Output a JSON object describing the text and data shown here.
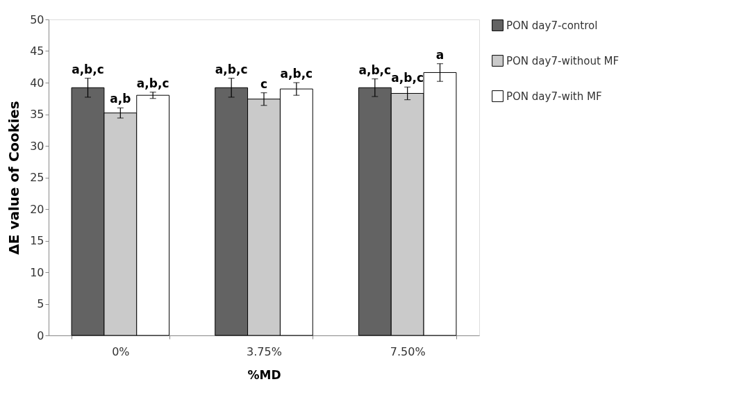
{
  "chart_data": {
    "type": "bar",
    "xlabel": "%MD",
    "ylabel": "ΔE value of Cookies",
    "categories": [
      "0%",
      "3.75%",
      "7.50%"
    ],
    "ylim": [
      0,
      50
    ],
    "yticks": [
      0,
      5,
      10,
      15,
      20,
      25,
      30,
      35,
      40,
      45,
      50
    ],
    "grid": false,
    "legend": "right",
    "series": [
      {
        "name": "PON day7-control",
        "color": "#636363",
        "values": [
          39.2,
          39.2,
          39.2
        ],
        "errors": [
          1.5,
          1.5,
          1.4
        ],
        "value_labels": [
          "a,b,c",
          "a,b,c",
          "a,b,c"
        ]
      },
      {
        "name": "PON day7-without MF",
        "color": "#cacaca",
        "values": [
          35.2,
          37.4,
          38.3
        ],
        "errors": [
          0.8,
          1.0,
          1.0
        ],
        "value_labels": [
          "a,b",
          "c",
          "a,b,c"
        ]
      },
      {
        "name": "PON day7-with MF",
        "color": "#ffffff",
        "values": [
          38.0,
          39.0,
          41.6
        ],
        "errors": [
          0.5,
          1.0,
          1.4
        ],
        "value_labels": [
          "a,b,c",
          "a,b,c",
          "a"
        ]
      }
    ]
  }
}
